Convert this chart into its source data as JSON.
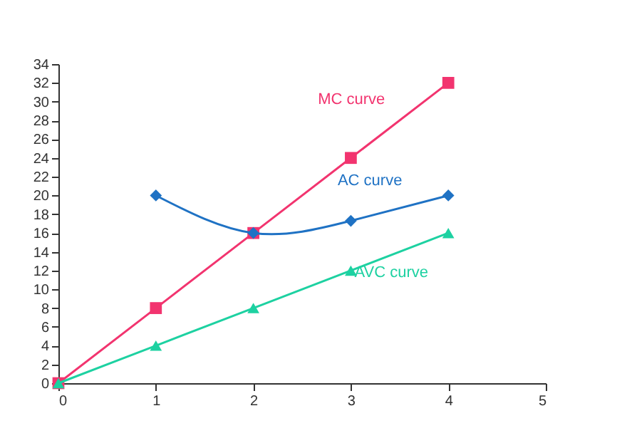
{
  "chart_data": {
    "type": "line",
    "xlim": [
      0,
      5
    ],
    "xticks": [
      0,
      1,
      2,
      3,
      4,
      5
    ],
    "ylim": [
      0,
      34
    ],
    "yticks": [
      0,
      2,
      4,
      6,
      8,
      10,
      12,
      14,
      16,
      18,
      20,
      22,
      24,
      26,
      28,
      30,
      32,
      34
    ],
    "grid": false,
    "legend": false,
    "series": [
      {
        "name": "MC curve",
        "color": "#f2346f",
        "marker": "square",
        "x": [
          0,
          1,
          2,
          3,
          4
        ],
        "values": [
          0,
          8,
          16,
          24,
          32
        ]
      },
      {
        "name": "AC curve",
        "color": "#1f72c4",
        "marker": "diamond",
        "x": [
          1,
          2,
          3,
          4
        ],
        "values": [
          20,
          16,
          17.3,
          20
        ]
      },
      {
        "name": "AVC curve",
        "color": "#1dd1a1",
        "marker": "triangle",
        "x": [
          0,
          1,
          2,
          3,
          4
        ],
        "values": [
          0,
          4,
          8,
          12,
          16
        ]
      }
    ]
  }
}
